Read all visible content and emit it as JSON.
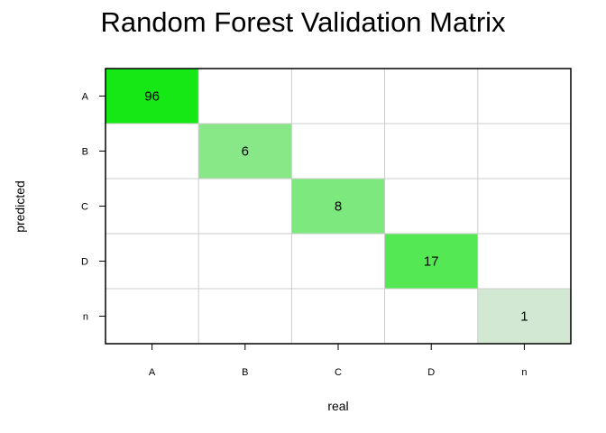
{
  "chart_data": {
    "type": "heatmap",
    "title": "Random Forest Validation Matrix",
    "xlabel": "real",
    "ylabel": "predicted",
    "x_categories": [
      "A",
      "B",
      "C",
      "D",
      "n"
    ],
    "y_categories": [
      "A",
      "B",
      "C",
      "D",
      "n"
    ],
    "values": [
      [
        96,
        0,
        0,
        0,
        0
      ],
      [
        0,
        6,
        0,
        0,
        0
      ],
      [
        0,
        0,
        8,
        0,
        0
      ],
      [
        0,
        0,
        0,
        17,
        0
      ],
      [
        0,
        0,
        0,
        0,
        1
      ]
    ],
    "cell_colors": [
      [
        "#16e816",
        "#ffffff",
        "#ffffff",
        "#ffffff",
        "#ffffff"
      ],
      [
        "#ffffff",
        "#88e888",
        "#ffffff",
        "#ffffff",
        "#ffffff"
      ],
      [
        "#ffffff",
        "#ffffff",
        "#7de87d",
        "#ffffff",
        "#ffffff"
      ],
      [
        "#ffffff",
        "#ffffff",
        "#ffffff",
        "#54e854",
        "#ffffff"
      ],
      [
        "#ffffff",
        "#ffffff",
        "#ffffff",
        "#ffffff",
        "#d2e8d2"
      ]
    ],
    "grid": true,
    "grid_color": "#cccccc"
  }
}
